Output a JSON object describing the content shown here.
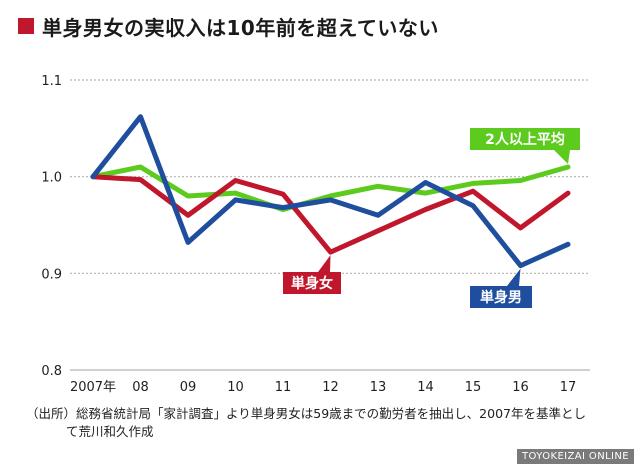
{
  "title": "単身男女の実収入は10年前を超えていない",
  "note": {
    "line1": "（出所）総務省統計局「家計調査」より単身男女は59歳までの勤労者を抽出し、2007年を基準とし",
    "line2": "て荒川和久作成"
  },
  "credit": "TOYOKEIZAI ONLINE",
  "colors": {
    "title_mark": "#c0172d",
    "all_avg": "#5ccb1e",
    "female": "#c0172d",
    "male": "#1f4e9e",
    "grid": "#b3b3b3"
  },
  "chart_data": {
    "type": "line",
    "categories": [
      "2007年",
      "08",
      "09",
      "10",
      "11",
      "12",
      "13",
      "14",
      "15",
      "16",
      "17"
    ],
    "ylim": [
      0.8,
      1.1
    ],
    "yticks": [
      "0.8",
      "0.9",
      "1.0",
      "1.1"
    ],
    "xlabel": "",
    "ylabel": "",
    "series": [
      {
        "name": "2人以上平均",
        "color": "#5ccb1e",
        "values": [
          1.0,
          1.01,
          0.98,
          0.983,
          0.966,
          0.98,
          0.99,
          0.983,
          0.993,
          0.996,
          1.01
        ]
      },
      {
        "name": "単身女",
        "color": "#c0172d",
        "values": [
          1.0,
          0.997,
          0.96,
          0.996,
          0.982,
          0.922,
          0.944,
          0.966,
          0.985,
          0.947,
          0.983
        ]
      },
      {
        "name": "単身男",
        "color": "#1f4e9e",
        "values": [
          1.0,
          1.062,
          0.932,
          0.976,
          0.968,
          0.976,
          0.96,
          0.994,
          0.97,
          0.908,
          0.93
        ]
      }
    ]
  }
}
